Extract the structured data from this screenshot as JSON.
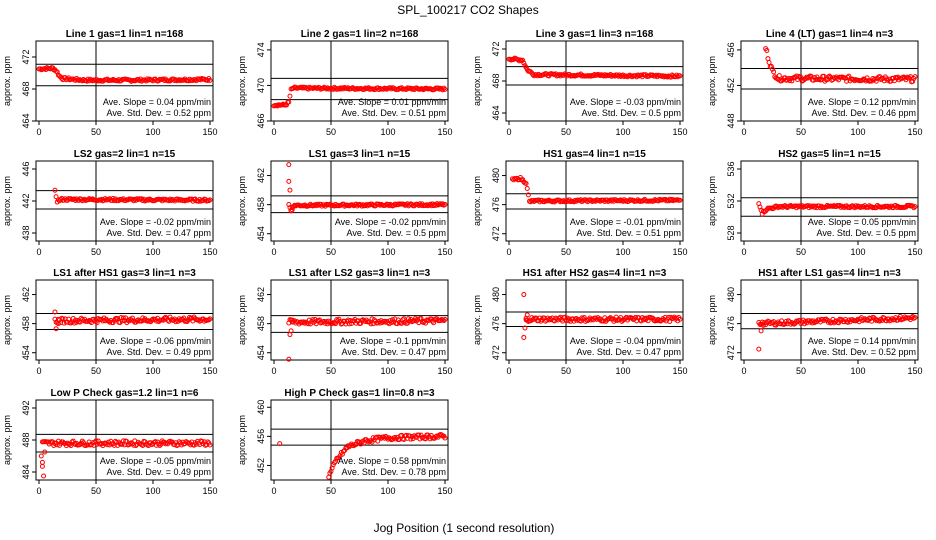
{
  "suptitle": "SPL_100217  CO2 Shapes",
  "xlabel": "Jog Position (1 second resolution)",
  "ylabel": "approx. ppm",
  "colors": {
    "points": "#ff0000",
    "lines": "#000000"
  },
  "chart_data": [
    {
      "type": "scatter",
      "title": "Line 1 gas=1 lin=1 n=168",
      "xlim": [
        0,
        150
      ],
      "ylim": [
        464,
        474
      ],
      "yticks": [
        464,
        468,
        472
      ],
      "xticks": [
        0,
        50,
        100,
        150
      ],
      "hlines": [
        471.1,
        468.4
      ],
      "vline": 50,
      "shape": [
        [
          0,
          470.5
        ],
        [
          12,
          470.6
        ],
        [
          15,
          470.3
        ],
        [
          18,
          469.6
        ],
        [
          21,
          469.3
        ],
        [
          40,
          469.1
        ],
        [
          80,
          469.1
        ],
        [
          150,
          469.2
        ]
      ],
      "noise": 0.15,
      "start": 0,
      "stats": [
        "Ave. Slope = 0.04  ppm/min",
        "Ave. Std. Dev. = 0.52  ppm"
      ]
    },
    {
      "type": "scatter",
      "title": "Line 2 gas=1 lin=2 n=168",
      "xlim": [
        0,
        150
      ],
      "ylim": [
        466,
        475
      ],
      "yticks": [
        466,
        470,
        474
      ],
      "xticks": [
        0,
        50,
        100,
        150
      ],
      "hlines": [
        470.8,
        468.4
      ],
      "vline": 50,
      "shape": [
        [
          0,
          467.8
        ],
        [
          10,
          467.8
        ],
        [
          13,
          468.1
        ],
        [
          15,
          469.5
        ],
        [
          17,
          469.7
        ],
        [
          150,
          469.6
        ]
      ],
      "noise": 0.12,
      "start": 0,
      "stats": [
        "Ave. Slope = 0.01  ppm/min",
        "Ave. Std. Dev. = 0.51  ppm"
      ]
    },
    {
      "type": "scatter",
      "title": "Line 3 gas=1 lin=3 n=168",
      "xlim": [
        0,
        150
      ],
      "ylim": [
        463,
        473
      ],
      "yticks": [
        464,
        468,
        472
      ],
      "xticks": [
        0,
        50,
        100,
        150
      ],
      "hlines": [
        469.8,
        467.5
      ],
      "vline": 50,
      "shape": [
        [
          0,
          470.8
        ],
        [
          12,
          470.6
        ],
        [
          16,
          469.4
        ],
        [
          22,
          468.8
        ],
        [
          150,
          468.6
        ]
      ],
      "noise": 0.15,
      "start": 0,
      "stats": [
        "Ave. Slope = -0.03  ppm/min",
        "Ave. Std. Dev. = 0.5  ppm"
      ]
    },
    {
      "type": "scatter",
      "title": "Line 4 (LT) gas=1 lin=4 n=3",
      "xlim": [
        0,
        150
      ],
      "ylim": [
        448,
        457
      ],
      "yticks": [
        448,
        452,
        456
      ],
      "xticks": [
        0,
        50,
        100,
        150
      ],
      "hlines": [
        453.9,
        451.6
      ],
      "vline": 50,
      "shape": [
        [
          19,
          456.2
        ],
        [
          22,
          454.8
        ],
        [
          25,
          453.6
        ],
        [
          30,
          452.8
        ],
        [
          150,
          452.7
        ]
      ],
      "noise": 0.3,
      "start": 19,
      "stats": [
        "Ave. Slope = 0.12  ppm/min",
        "Ave. Std. Dev. = 0.46  ppm"
      ]
    },
    {
      "type": "scatter",
      "title": "LS2 gas=2 lin=1 n=15",
      "xlim": [
        0,
        150
      ],
      "ylim": [
        437,
        447
      ],
      "yticks": [
        438,
        442,
        446
      ],
      "xticks": [
        0,
        50,
        100,
        150
      ],
      "hlines": [
        443.3,
        441.0
      ],
      "vline": 50,
      "shape": [
        [
          14,
          443.2
        ],
        [
          16,
          442.0
        ],
        [
          20,
          442.2
        ],
        [
          150,
          442.1
        ]
      ],
      "noise": 0.15,
      "start": 14,
      "stats": [
        "Ave. Slope = -0.02  ppm/min",
        "Ave. Std. Dev. = 0.47  ppm"
      ]
    },
    {
      "type": "scatter",
      "title": "LS1 gas=3 lin=1 n=15",
      "xlim": [
        0,
        150
      ],
      "ylim": [
        453,
        464
      ],
      "yticks": [
        454,
        458,
        462
      ],
      "xticks": [
        0,
        50,
        100,
        150
      ],
      "hlines": [
        459.2,
        456.9
      ],
      "vline": 50,
      "shape": [
        [
          13,
          458.0
        ],
        [
          15,
          457.2
        ],
        [
          18,
          457.9
        ],
        [
          150,
          458.0
        ]
      ],
      "noise": 0.15,
      "start": 13,
      "stats": [
        "Ave. Slope = -0.02  ppm/min",
        "Ave. Std. Dev. = 0.5  ppm"
      ],
      "outliers": [
        [
          13,
          463.5
        ],
        [
          13,
          461.2
        ],
        [
          14,
          460.0
        ],
        [
          15,
          457.2
        ],
        [
          16,
          457.6
        ]
      ]
    },
    {
      "type": "scatter",
      "title": "HS1 gas=4 lin=1 n=15",
      "xlim": [
        0,
        150
      ],
      "ylim": [
        471,
        482
      ],
      "yticks": [
        472,
        476,
        480
      ],
      "xticks": [
        0,
        50,
        100,
        150
      ],
      "hlines": [
        477.5,
        475.4
      ],
      "vline": 50,
      "shape": [
        [
          3,
          479.4
        ],
        [
          10,
          479.6
        ],
        [
          15,
          479.0
        ],
        [
          18,
          476.4
        ],
        [
          22,
          476.5
        ],
        [
          150,
          476.6
        ]
      ],
      "noise": 0.15,
      "start": 3,
      "stats": [
        "Ave. Slope = -0.01  ppm/min",
        "Ave. Std. Dev. = 0.51  ppm"
      ]
    },
    {
      "type": "scatter",
      "title": "HS2 gas=5 lin=1 n=15",
      "xlim": [
        0,
        150
      ],
      "ylim": [
        527,
        537
      ],
      "yticks": [
        528,
        532,
        536
      ],
      "xticks": [
        0,
        50,
        100,
        150
      ],
      "hlines": [
        532.4,
        530.1
      ],
      "vline": 50,
      "shape": [
        [
          13,
          531.8
        ],
        [
          16,
          530.5
        ],
        [
          20,
          531.0
        ],
        [
          30,
          531.3
        ],
        [
          150,
          531.3
        ]
      ],
      "noise": 0.15,
      "start": 13,
      "stats": [
        "Ave. Slope = 0.05  ppm/min",
        "Ave. Std. Dev. = 0.5  ppm"
      ]
    },
    {
      "type": "scatter",
      "title": "LS1 after HS1 gas=3 lin=1 n=3",
      "xlim": [
        0,
        150
      ],
      "ylim": [
        453,
        464
      ],
      "yticks": [
        454,
        458,
        462
      ],
      "xticks": [
        0,
        50,
        100,
        150
      ],
      "hlines": [
        459.4,
        457.2
      ],
      "vline": 50,
      "shape": [
        [
          14,
          458.4
        ],
        [
          150,
          458.6
        ]
      ],
      "noise": 0.35,
      "start": 14,
      "stats": [
        "Ave. Slope = -0.06  ppm/min",
        "Ave. Std. Dev. = 0.49  ppm"
      ],
      "outliers": [
        [
          14,
          459.6
        ],
        [
          15,
          457.3
        ],
        [
          17,
          458.0
        ]
      ]
    },
    {
      "type": "scatter",
      "title": "LS1 after LS2 gas=3 lin=1 n=3",
      "xlim": [
        0,
        150
      ],
      "ylim": [
        453,
        464
      ],
      "yticks": [
        454,
        458,
        462
      ],
      "xticks": [
        0,
        50,
        100,
        150
      ],
      "hlines": [
        459.1,
        456.8
      ],
      "vline": 50,
      "shape": [
        [
          13,
          458.2
        ],
        [
          150,
          458.4
        ]
      ],
      "noise": 0.35,
      "start": 13,
      "stats": [
        "Ave. Slope = -0.1  ppm/min",
        "Ave. Std. Dev. = 0.47  ppm"
      ],
      "outliers": [
        [
          13,
          453.1
        ],
        [
          14,
          456.5
        ],
        [
          15,
          457.0
        ],
        [
          16,
          458.5
        ]
      ]
    },
    {
      "type": "scatter",
      "title": "HS1 after HS2 gas=4 lin=1 n=3",
      "xlim": [
        0,
        150
      ],
      "ylim": [
        471,
        482
      ],
      "yticks": [
        472,
        476,
        480
      ],
      "xticks": [
        0,
        50,
        100,
        150
      ],
      "hlines": [
        477.6,
        475.6
      ],
      "vline": 50,
      "shape": [
        [
          15,
          476.6
        ],
        [
          150,
          476.6
        ]
      ],
      "noise": 0.3,
      "start": 15,
      "stats": [
        "Ave. Slope = -0.04  ppm/min",
        "Ave. Std. Dev. = 0.47  ppm"
      ],
      "outliers": [
        [
          13,
          480.0
        ],
        [
          13,
          474.1
        ],
        [
          14,
          475.4
        ],
        [
          15,
          476.5
        ],
        [
          16,
          477.2
        ]
      ]
    },
    {
      "type": "scatter",
      "title": "HS1 after LS1 gas=4 lin=1 n=3",
      "xlim": [
        0,
        150
      ],
      "ylim": [
        471,
        482
      ],
      "yticks": [
        472,
        476,
        480
      ],
      "xticks": [
        0,
        50,
        100,
        150
      ],
      "hlines": [
        477.4,
        475.3
      ],
      "vline": 50,
      "shape": [
        [
          13,
          476.0
        ],
        [
          150,
          476.8
        ]
      ],
      "noise": 0.3,
      "start": 13,
      "stats": [
        "Ave. Slope = 0.14  ppm/min",
        "Ave. Std. Dev. = 0.52  ppm"
      ],
      "outliers": [
        [
          13,
          472.5
        ],
        [
          15,
          475.0
        ],
        [
          16,
          476.2
        ]
      ]
    },
    {
      "type": "scatter",
      "title": "Low P Check gas=1.2 lin=1 n=6",
      "xlim": [
        0,
        150
      ],
      "ylim": [
        483,
        493
      ],
      "yticks": [
        484,
        488,
        492
      ],
      "xticks": [
        0,
        50,
        100,
        150
      ],
      "hlines": [
        488.7,
        486.5
      ],
      "vline": 50,
      "shape": [
        [
          3,
          487.6
        ],
        [
          150,
          487.6
        ]
      ],
      "noise": 0.3,
      "start": 3,
      "stats": [
        "Ave. Slope = -0.05  ppm/min",
        "Ave. Std. Dev. = 0.49  ppm"
      ],
      "outliers": [
        [
          2,
          486.0
        ],
        [
          3,
          485.2
        ],
        [
          3,
          484.7
        ],
        [
          4,
          483.5
        ],
        [
          5,
          486.5
        ]
      ]
    },
    {
      "type": "scatter",
      "title": "High P Check gas=1 lin=0.8 n=3",
      "xlim": [
        0,
        150
      ],
      "ylim": [
        450,
        461
      ],
      "yticks": [
        452,
        456,
        460
      ],
      "xticks": [
        0,
        50,
        100,
        150
      ],
      "hlines": [
        457.0,
        454.8
      ],
      "vline": 50,
      "shape": [
        [
          48,
          450.5
        ],
        [
          55,
          452.8
        ],
        [
          65,
          454.6
        ],
        [
          80,
          455.4
        ],
        [
          100,
          455.8
        ],
        [
          150,
          456.0
        ]
      ],
      "noise": 0.3,
      "start": 48,
      "stats": [
        "Ave. Slope = 0.58  ppm/min",
        "Ave. Std. Dev. = 0.78  ppm"
      ],
      "outliers": [
        [
          5,
          455.0
        ]
      ]
    }
  ]
}
